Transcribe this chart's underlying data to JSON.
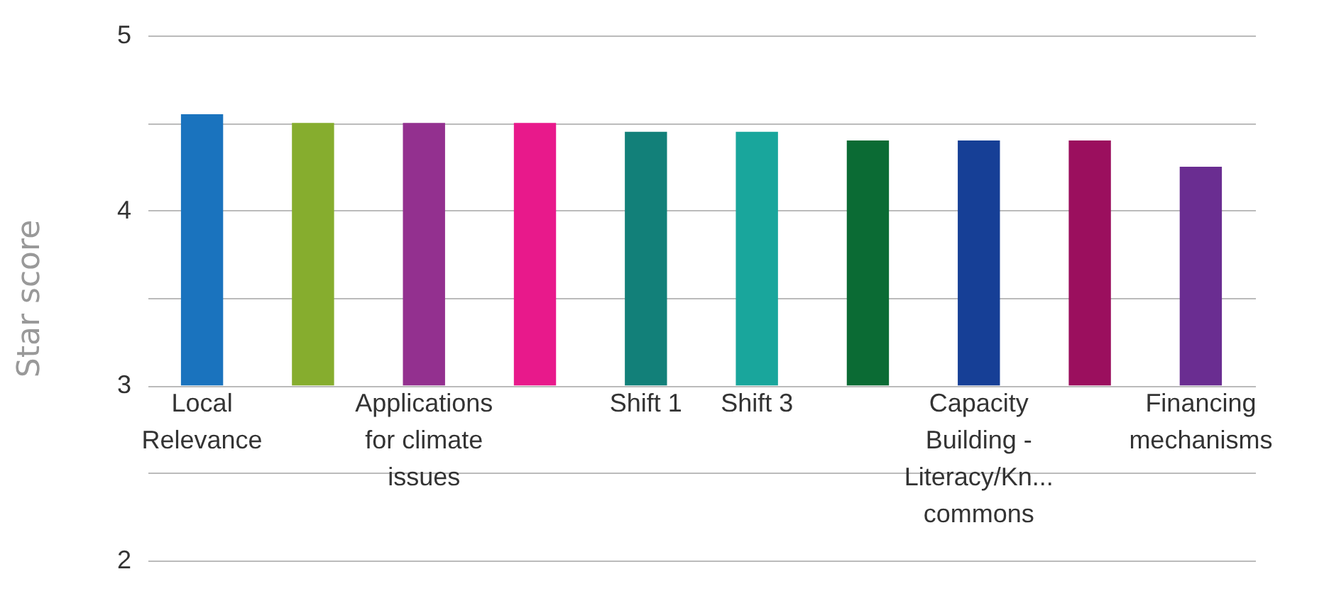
{
  "chart_data": {
    "type": "bar",
    "ylabel": "Star score",
    "categories": [
      "Local Relevance",
      null,
      "Applications for climate issues",
      null,
      "Shift 1",
      "Shift 3",
      null,
      "Capacity Building - Literacy/Kn... commons",
      null,
      "Financing mechanisms"
    ],
    "base": [
      3,
      3,
      3,
      3,
      3,
      3,
      3,
      3,
      3,
      3
    ],
    "values": [
      1.55,
      1.5,
      1.5,
      1.5,
      1.45,
      1.45,
      1.4,
      1.4,
      1.4,
      1.25
    ],
    "colors": [
      "#1a73be",
      "#86ad2e",
      "#93308f",
      "#e8198b",
      "#128079",
      "#19a69c",
      "#0b6b34",
      "#163f96",
      "#9b0f5e",
      "#6a2d91"
    ],
    "ylim": [
      2,
      5
    ],
    "yticks": [
      2,
      {
        "value": 2.5,
        "label": null
      },
      3,
      {
        "value": 3.5,
        "label": null
      },
      4,
      {
        "value": 4.5,
        "label": null
      },
      5
    ],
    "grid": "y",
    "legend": false
  }
}
